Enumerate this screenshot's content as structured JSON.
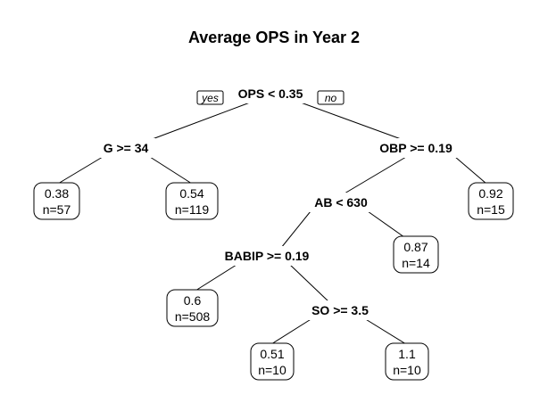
{
  "title": "Average OPS in Year 2",
  "branch_labels": {
    "yes": "yes",
    "no": "no"
  },
  "splits": [
    {
      "id": "root",
      "label": "OPS < 0.35"
    },
    {
      "id": "g",
      "label": "G >= 34"
    },
    {
      "id": "obp",
      "label": "OBP >= 0.19"
    },
    {
      "id": "ab",
      "label": "AB < 630"
    },
    {
      "id": "babip",
      "label": "BABIP >= 0.19"
    },
    {
      "id": "so",
      "label": "SO >= 3.5"
    }
  ],
  "leaves": [
    {
      "id": "leaf1",
      "value": "0.38",
      "n": "n=57"
    },
    {
      "id": "leaf2",
      "value": "0.54",
      "n": "n=119"
    },
    {
      "id": "leaf3",
      "value": "0.92",
      "n": "n=15"
    },
    {
      "id": "leaf4",
      "value": "0.87",
      "n": "n=14"
    },
    {
      "id": "leaf5",
      "value": "0.6",
      "n": "n=508"
    },
    {
      "id": "leaf6",
      "value": "0.51",
      "n": "n=10"
    },
    {
      "id": "leaf7",
      "value": "1.1",
      "n": "n=10"
    }
  ]
}
